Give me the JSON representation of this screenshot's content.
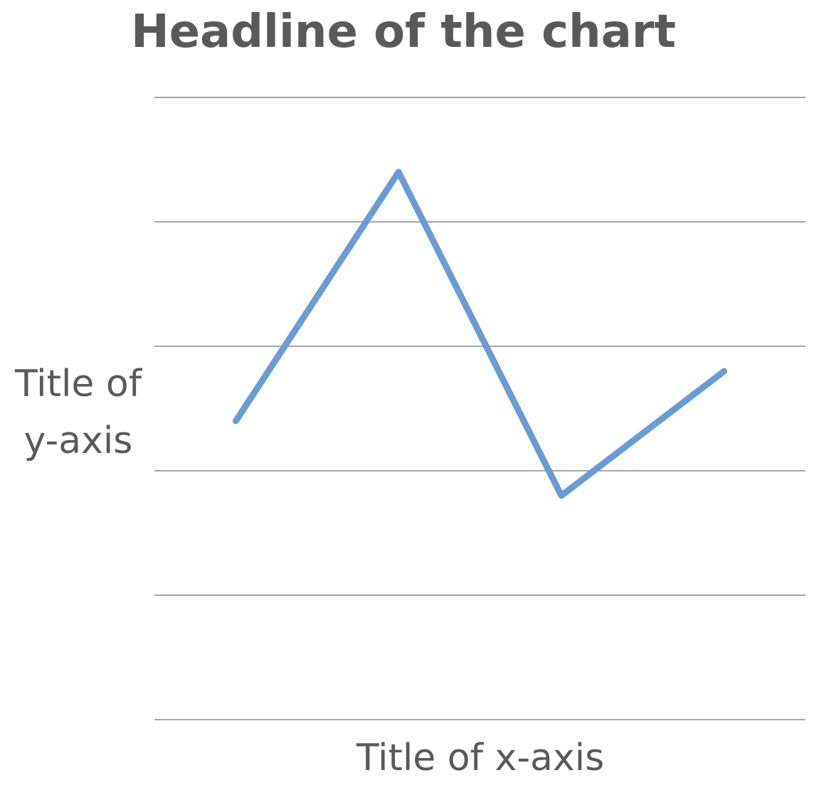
{
  "chart_data": {
    "type": "line",
    "title": "Headline of the chart",
    "xlabel": "Title of x-axis",
    "ylabel_lines": [
      "Title of",
      "y-axis"
    ],
    "x": [
      1,
      2,
      3,
      4
    ],
    "series": [
      {
        "values": [
          2.4,
          4.4,
          1.8,
          2.8
        ],
        "color": "#6a9bd2"
      }
    ],
    "xlim": [
      0.5,
      4.5
    ],
    "ylim": [
      0,
      5
    ],
    "yticks": [
      0,
      1,
      2,
      3,
      4,
      5
    ],
    "grid": true,
    "legend": "none",
    "colors": {
      "text": "#595959",
      "grid": "#a6a6a6",
      "line": "#6a9bd2"
    }
  }
}
